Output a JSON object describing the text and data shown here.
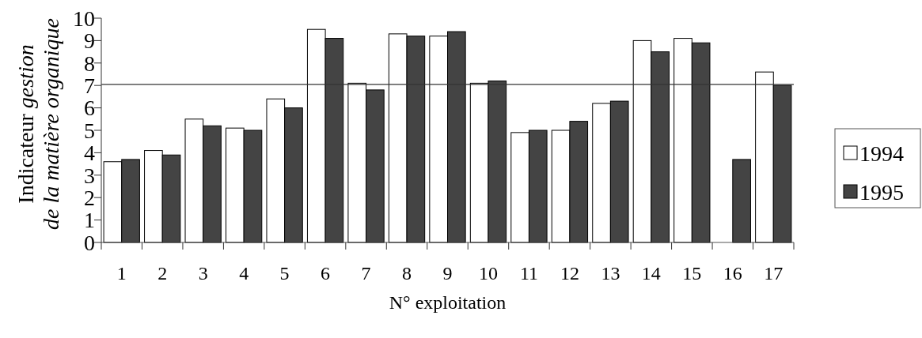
{
  "chart_data": {
    "type": "bar",
    "xlabel": "N° exploitation",
    "ylabel": "Indicateur gestion de la matière organique",
    "categories": [
      "1",
      "2",
      "3",
      "4",
      "5",
      "6",
      "7",
      "8",
      "9",
      "10",
      "11",
      "12",
      "13",
      "14",
      "15",
      "16",
      "17"
    ],
    "series": [
      {
        "name": "1994",
        "color": "#ffffff",
        "values": [
          3.6,
          4.1,
          5.5,
          5.1,
          6.4,
          9.5,
          7.1,
          9.3,
          9.2,
          7.1,
          4.9,
          5.0,
          6.2,
          9.0,
          9.1,
          null,
          7.6
        ]
      },
      {
        "name": "1995",
        "color": "#444444",
        "values": [
          3.7,
          3.9,
          5.2,
          5.0,
          6.0,
          9.1,
          6.8,
          9.2,
          9.4,
          7.2,
          5.0,
          5.4,
          6.3,
          8.5,
          8.9,
          3.7,
          7.0
        ]
      }
    ],
    "ylim": [
      0,
      10
    ],
    "yticks": [
      0,
      1,
      2,
      3,
      4,
      5,
      6,
      7,
      8,
      9,
      10
    ],
    "ref_lines": [
      {
        "axis": "y",
        "value": 7.05
      }
    ],
    "grid": false,
    "legend": "right"
  }
}
